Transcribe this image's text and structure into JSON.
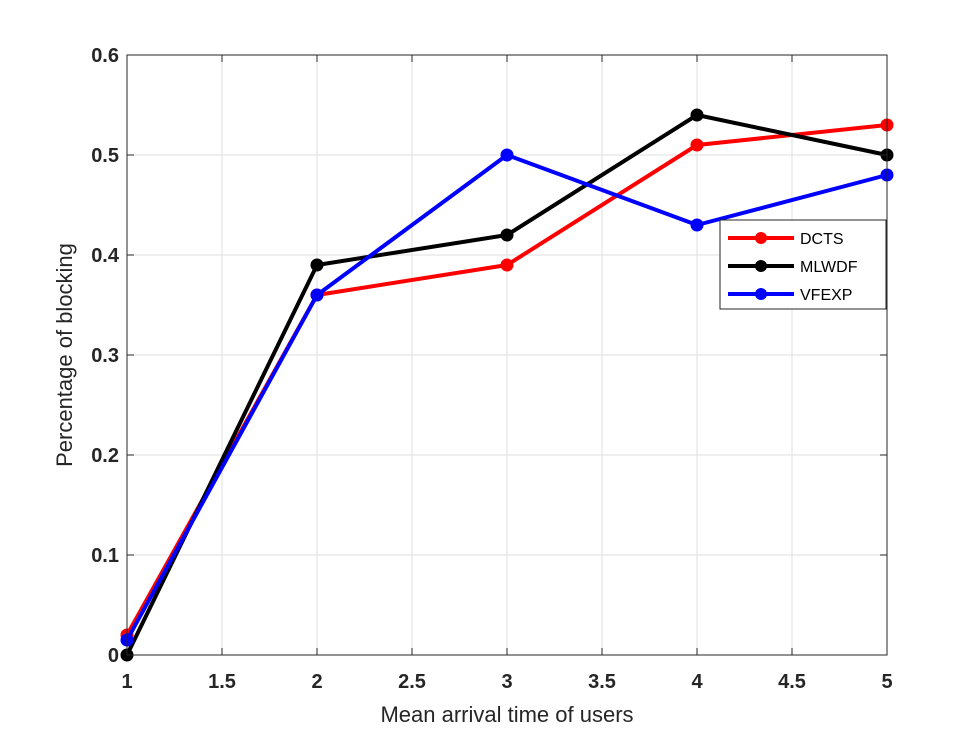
{
  "chart_data": {
    "type": "line",
    "xlabel": "Mean arrival time of users",
    "ylabel": "Percentage of blocking",
    "xlim": [
      1,
      5
    ],
    "ylim": [
      0,
      0.6
    ],
    "xticks": [
      1,
      1.5,
      2,
      2.5,
      3,
      3.5,
      4,
      4.5,
      5
    ],
    "xtick_labels": [
      "1",
      "1.5",
      "2",
      "2.5",
      "3",
      "3.5",
      "4",
      "4.5",
      "5"
    ],
    "yticks": [
      0,
      0.1,
      0.2,
      0.3,
      0.4,
      0.5,
      0.6
    ],
    "ytick_labels": [
      "0",
      "0.1",
      "0.2",
      "0.3",
      "0.4",
      "0.5",
      "0.6"
    ],
    "grid": true,
    "legend_position": "right",
    "series": [
      {
        "name": "DCTS",
        "color": "#ff0000",
        "x": [
          1,
          2,
          3,
          4,
          5
        ],
        "values": [
          0.02,
          0.36,
          0.39,
          0.51,
          0.53
        ]
      },
      {
        "name": "MLWDF",
        "color": "#000000",
        "x": [
          1,
          2,
          3,
          4,
          5
        ],
        "values": [
          0.0,
          0.39,
          0.42,
          0.54,
          0.5
        ]
      },
      {
        "name": "VFEXP",
        "color": "#0000ff",
        "x": [
          1,
          2,
          3,
          4,
          5
        ],
        "values": [
          0.015,
          0.36,
          0.5,
          0.43,
          0.48
        ]
      }
    ]
  }
}
